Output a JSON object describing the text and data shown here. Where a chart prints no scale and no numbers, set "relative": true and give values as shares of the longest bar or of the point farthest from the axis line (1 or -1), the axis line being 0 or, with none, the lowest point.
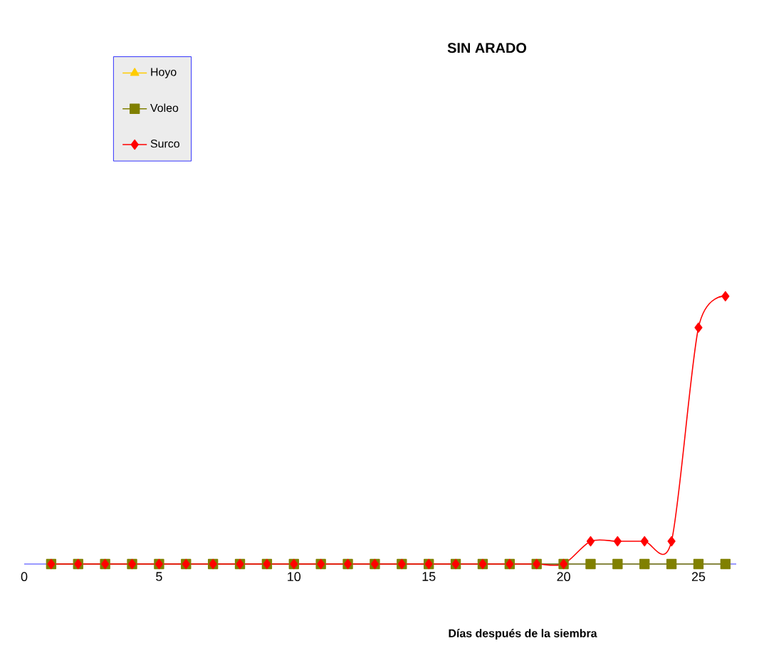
{
  "chart_data": {
    "type": "line",
    "title": "SIN ARADO",
    "xlabel": "Días después de la siembra",
    "relative": true,
    "x": [
      1,
      2,
      3,
      4,
      5,
      6,
      7,
      8,
      9,
      10,
      11,
      12,
      13,
      14,
      15,
      16,
      17,
      18,
      19,
      20,
      21,
      22,
      23,
      24,
      25,
      26
    ],
    "xlim": [
      0,
      26.4
    ],
    "xticks": [
      0,
      5,
      10,
      15,
      20,
      25
    ],
    "legend": "top left",
    "line_style": "solid",
    "series": [
      {
        "name": "Hoyo",
        "color": "#ffcc00",
        "marker": "triangle",
        "values": [
          null,
          null,
          null,
          null,
          null,
          null,
          null,
          null,
          null,
          null,
          null,
          null,
          null,
          null,
          null,
          null,
          null,
          null,
          null,
          null,
          null,
          null,
          null,
          null,
          null,
          null
        ]
      },
      {
        "name": "Voleo",
        "color": "#808000",
        "marker": "square",
        "values": [
          0,
          0,
          0,
          0,
          0,
          0,
          0,
          0,
          0,
          0,
          0,
          0,
          0,
          0,
          0,
          0,
          0,
          0,
          0,
          0,
          0,
          0,
          0,
          0,
          0,
          0
        ]
      },
      {
        "name": "Surco",
        "color": "#ff0000",
        "marker": "diamond",
        "values": [
          0,
          0,
          0,
          0,
          0,
          0,
          0,
          0,
          0,
          0,
          0,
          0,
          0,
          0,
          0,
          0,
          0,
          0,
          0,
          0,
          0.085,
          0.085,
          0.085,
          0.085,
          0.883,
          1
        ]
      }
    ]
  }
}
